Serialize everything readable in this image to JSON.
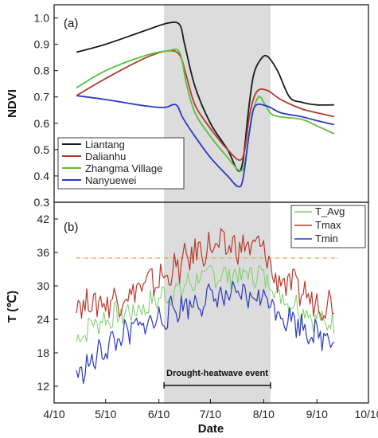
{
  "colors": {
    "shade": "#dcdcdc",
    "liantang": "#1a1a1a",
    "dalianhu": "#b03a2e",
    "zhangma": "#5cbf3a",
    "nanyuewei": "#2b37c9",
    "tavg": "#7ccf6b",
    "tmax": "#b83a2a",
    "tmin": "#2a3bbf",
    "threshold": "#e0a060"
  },
  "chart_data": [
    {
      "type": "line",
      "panel_label": "(a)",
      "ylabel": "NDVI",
      "ylim": [
        0.3,
        1.05
      ],
      "yticks": [
        0.3,
        0.4,
        0.5,
        0.6,
        0.7,
        0.8,
        0.9,
        1.0
      ],
      "ytick_labels": [
        "0.3",
        "0.4",
        "0.5",
        "0.6",
        "0.7",
        "0.8",
        "0.9",
        "1.0"
      ],
      "shaded_period": [
        "2021-06-13",
        "2021-08-14"
      ],
      "legend_position": "bottom-left",
      "series": [
        {
          "name": "Liantang",
          "points": [
            [
              "2021-04-23",
              0.87
            ],
            [
              "2021-05-10",
              0.9
            ],
            [
              "2021-06-01",
              0.95
            ],
            [
              "2021-06-15",
              0.98
            ],
            [
              "2021-06-22",
              0.975
            ],
            [
              "2021-06-25",
              0.9
            ],
            [
              "2021-07-01",
              0.74
            ],
            [
              "2021-07-10",
              0.6
            ],
            [
              "2021-07-20",
              0.5
            ],
            [
              "2021-07-26",
              0.42
            ],
            [
              "2021-07-29",
              0.46
            ],
            [
              "2021-08-01",
              0.64
            ],
            [
              "2021-08-04",
              0.78
            ],
            [
              "2021-08-08",
              0.84
            ],
            [
              "2021-08-12",
              0.855
            ],
            [
              "2021-08-18",
              0.8
            ],
            [
              "2021-08-25",
              0.7
            ],
            [
              "2021-09-01",
              0.68
            ],
            [
              "2021-09-10",
              0.67
            ],
            [
              "2021-09-20",
              0.67
            ]
          ]
        },
        {
          "name": "Dalianhu",
          "points": [
            [
              "2021-04-23",
              0.705
            ],
            [
              "2021-05-10",
              0.77
            ],
            [
              "2021-06-01",
              0.845
            ],
            [
              "2021-06-15",
              0.875
            ],
            [
              "2021-06-22",
              0.86
            ],
            [
              "2021-06-26",
              0.78
            ],
            [
              "2021-07-01",
              0.67
            ],
            [
              "2021-07-10",
              0.58
            ],
            [
              "2021-07-20",
              0.5
            ],
            [
              "2021-07-27",
              0.46
            ],
            [
              "2021-07-30",
              0.5
            ],
            [
              "2021-08-02",
              0.64
            ],
            [
              "2021-08-06",
              0.72
            ],
            [
              "2021-08-12",
              0.725
            ],
            [
              "2021-08-20",
              0.69
            ],
            [
              "2021-09-01",
              0.655
            ],
            [
              "2021-09-10",
              0.64
            ],
            [
              "2021-09-20",
              0.625
            ]
          ]
        },
        {
          "name": "Zhangma Village",
          "points": [
            [
              "2021-04-23",
              0.735
            ],
            [
              "2021-05-10",
              0.8
            ],
            [
              "2021-06-01",
              0.855
            ],
            [
              "2021-06-15",
              0.875
            ],
            [
              "2021-06-22",
              0.87
            ],
            [
              "2021-06-26",
              0.75
            ],
            [
              "2021-07-01",
              0.64
            ],
            [
              "2021-07-10",
              0.55
            ],
            [
              "2021-07-20",
              0.47
            ],
            [
              "2021-07-27",
              0.42
            ],
            [
              "2021-07-30",
              0.45
            ],
            [
              "2021-08-03",
              0.62
            ],
            [
              "2021-08-07",
              0.7
            ],
            [
              "2021-08-11",
              0.67
            ],
            [
              "2021-08-16",
              0.63
            ],
            [
              "2021-09-01",
              0.615
            ],
            [
              "2021-09-10",
              0.59
            ],
            [
              "2021-09-20",
              0.56
            ]
          ]
        },
        {
          "name": "Nanyuewei",
          "points": [
            [
              "2021-04-23",
              0.705
            ],
            [
              "2021-05-10",
              0.69
            ],
            [
              "2021-06-01",
              0.667
            ],
            [
              "2021-06-13",
              0.66
            ],
            [
              "2021-06-20",
              0.67
            ],
            [
              "2021-06-24",
              0.62
            ],
            [
              "2021-07-01",
              0.55
            ],
            [
              "2021-07-10",
              0.47
            ],
            [
              "2021-07-20",
              0.4
            ],
            [
              "2021-07-26",
              0.36
            ],
            [
              "2021-07-29",
              0.39
            ],
            [
              "2021-08-02",
              0.58
            ],
            [
              "2021-08-05",
              0.665
            ],
            [
              "2021-08-12",
              0.665
            ],
            [
              "2021-08-20",
              0.64
            ],
            [
              "2021-09-01",
              0.625
            ],
            [
              "2021-09-10",
              0.61
            ],
            [
              "2021-09-20",
              0.595
            ]
          ]
        }
      ]
    },
    {
      "type": "line",
      "panel_label": "(b)",
      "xlabel": "Date",
      "ylabel": "T (℃)",
      "ylim": [
        9,
        45
      ],
      "yticks": [
        12,
        18,
        24,
        30,
        36,
        42
      ],
      "ytick_labels": [
        "12",
        "18",
        "24",
        "30",
        "36",
        "42"
      ],
      "x_ticks": [
        "2021-04-10",
        "2021-05-10",
        "2021-06-10",
        "2021-07-10",
        "2021-08-10",
        "2021-09-10",
        "2021-10-10"
      ],
      "x_tick_labels": [
        "4/10",
        "5/10",
        "6/10",
        "7/10",
        "8/10",
        "9/10",
        "10/10"
      ],
      "threshold_line": 35,
      "shaded_period": [
        "2021-06-13",
        "2021-08-14"
      ],
      "event_label": "Drought-heatwave event",
      "legend_position": "top-right",
      "series": [
        {
          "name": "T_Avg",
          "points": [
            [
              "2021-04-23",
              20
            ],
            [
              "2021-05-01",
              23
            ],
            [
              "2021-05-10",
              24
            ],
            [
              "2021-05-20",
              25
            ],
            [
              "2021-06-01",
              26
            ],
            [
              "2021-06-10",
              28
            ],
            [
              "2021-06-20",
              29
            ],
            [
              "2021-07-01",
              31
            ],
            [
              "2021-07-10",
              32
            ],
            [
              "2021-07-20",
              32
            ],
            [
              "2021-08-01",
              32
            ],
            [
              "2021-08-10",
              32
            ],
            [
              "2021-08-15",
              30
            ],
            [
              "2021-08-20",
              28
            ],
            [
              "2021-09-01",
              26
            ],
            [
              "2021-09-10",
              24
            ],
            [
              "2021-09-20",
              23
            ]
          ]
        },
        {
          "name": "Tmax",
          "points": [
            [
              "2021-04-23",
              27
            ],
            [
              "2021-05-01",
              27
            ],
            [
              "2021-05-10",
              27
            ],
            [
              "2021-05-20",
              28
            ],
            [
              "2021-06-01",
              30
            ],
            [
              "2021-06-10",
              31
            ],
            [
              "2021-06-20",
              33
            ],
            [
              "2021-07-01",
              36
            ],
            [
              "2021-07-10",
              37
            ],
            [
              "2021-07-20",
              37
            ],
            [
              "2021-08-01",
              37
            ],
            [
              "2021-08-10",
              37
            ],
            [
              "2021-08-15",
              32
            ],
            [
              "2021-08-20",
              31
            ],
            [
              "2021-09-01",
              29
            ],
            [
              "2021-09-10",
              27
            ],
            [
              "2021-09-20",
              27
            ]
          ]
        },
        {
          "name": "Tmin",
          "points": [
            [
              "2021-04-23",
              14
            ],
            [
              "2021-05-01",
              16
            ],
            [
              "2021-05-10",
              19
            ],
            [
              "2021-05-20",
              21
            ],
            [
              "2021-06-01",
              23
            ],
            [
              "2021-06-10",
              24
            ],
            [
              "2021-06-20",
              26
            ],
            [
              "2021-07-01",
              27
            ],
            [
              "2021-07-10",
              28
            ],
            [
              "2021-07-20",
              28
            ],
            [
              "2021-08-01",
              28
            ],
            [
              "2021-08-10",
              28
            ],
            [
              "2021-08-15",
              27
            ],
            [
              "2021-08-20",
              25
            ],
            [
              "2021-09-01",
              23
            ],
            [
              "2021-09-10",
              21
            ],
            [
              "2021-09-20",
              21
            ]
          ]
        }
      ]
    }
  ]
}
